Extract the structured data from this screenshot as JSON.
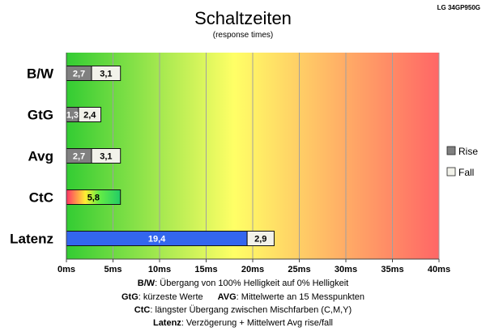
{
  "model": "LG 34GP950G",
  "chart_data": {
    "type": "bar",
    "orientation": "horizontal",
    "stacked": true,
    "title": "Schaltzeiten",
    "subtitle": "(response times)",
    "categories": [
      "B/W",
      "GtG",
      "Avg",
      "CtC",
      "Latenz"
    ],
    "series": [
      {
        "name": "Rise",
        "values": [
          2.7,
          1.3,
          2.7,
          5.8,
          19.4
        ],
        "labels": [
          "2,7",
          "1,3",
          "2,7",
          "5,8",
          "19,4"
        ]
      },
      {
        "name": "Fall",
        "values": [
          3.1,
          2.4,
          3.1,
          null,
          2.9
        ],
        "labels": [
          "3,1",
          "2,4",
          "3,1",
          "",
          "2,9"
        ]
      }
    ],
    "xlim": [
      0,
      40
    ],
    "xticks": [
      0,
      5,
      10,
      15,
      20,
      25,
      30,
      35,
      40
    ],
    "xtick_labels": [
      "0ms",
      "5ms",
      "10ms",
      "15ms",
      "20ms",
      "25ms",
      "30ms",
      "35ms",
      "40ms"
    ],
    "grid": "vertical",
    "legend": "right",
    "background_gradient": [
      "#33cc33",
      "#ffff66",
      "#ff6666"
    ],
    "colors": {
      "rise": "#808080",
      "fall": "#f2f2ea",
      "latency_rise": "#3366ee",
      "ctc_gradient": [
        "#ff3366",
        "#ffee33",
        "#33dd66"
      ]
    }
  },
  "legend_labels": {
    "rise": "Rise",
    "fall": "Fall"
  },
  "captions": {
    "line1_term": "B/W",
    "line1_text": ":  Übergang von 100% Helligkeit auf 0% Helligkeit",
    "line2_term1": "GtG",
    "line2_text1": ": kürzeste  Werte",
    "line2_term2": "AVG",
    "line2_text2": ": Mittelwerte  an 15 Messpunkten",
    "line3_term": "CtC",
    "line3_text": ": längster Übergang  zwischen Mischfarben (C,M,Y)",
    "line4_term": "Latenz",
    "line4_text": ": Verzögerung  + Mittelwert  Avg rise/fall"
  }
}
